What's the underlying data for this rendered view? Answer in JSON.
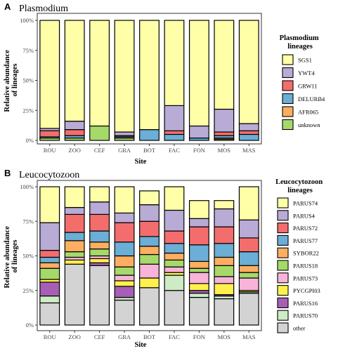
{
  "chart_data": [
    {
      "panel": "A",
      "type": "bar",
      "stacked": true,
      "title": "Plasmodium",
      "xlabel": "Site",
      "ylabel": "Relative abundance of lineages",
      "ylim": [
        0,
        100
      ],
      "ytick_labels": [
        "0%",
        "25%",
        "50%",
        "75%",
        "100%"
      ],
      "categories": [
        "ROU",
        "ZOO",
        "CEF",
        "GRA",
        "BOT",
        "FAC",
        "FON",
        "MOS",
        "MAS"
      ],
      "legend": {
        "title": "Plasmodium lineages",
        "position": "right"
      },
      "series": [
        {
          "name": "unknown",
          "color": "#a6d96a",
          "values": [
            2,
            2,
            12,
            2,
            0,
            0,
            0,
            1,
            0
          ]
        },
        {
          "name": "AFR065",
          "color": "#fdae61",
          "values": [
            0,
            0,
            0,
            0,
            0,
            0,
            0,
            1,
            0
          ]
        },
        {
          "name": "DELURB4",
          "color": "#6baed6",
          "values": [
            1,
            2,
            0,
            1,
            9,
            5,
            2,
            2,
            5
          ]
        },
        {
          "name": "GRW11",
          "color": "#f46d6d",
          "values": [
            5,
            5,
            0,
            1,
            0,
            3,
            0,
            3,
            3
          ]
        },
        {
          "name": "YWT4",
          "color": "#b8abd6",
          "values": [
            2,
            7,
            0,
            3,
            0,
            21,
            10,
            19,
            6
          ]
        },
        {
          "name": "SGS1",
          "color": "#ffffa8",
          "values": [
            90,
            84,
            88,
            93,
            91,
            71,
            88,
            74,
            86
          ]
        }
      ]
    },
    {
      "panel": "B",
      "type": "bar",
      "stacked": true,
      "title": "Leucocytozoon",
      "xlabel": "Site",
      "ylabel": "Relative abundance of lineages",
      "ylim": [
        0,
        100
      ],
      "ytick_labels": [
        "0%",
        "25%",
        "50%",
        "75%",
        "100%"
      ],
      "categories": [
        "ROU",
        "ZOO",
        "CEF",
        "GRA",
        "BOT",
        "FAC",
        "FON",
        "MOS",
        "MAS"
      ],
      "legend": {
        "title": "Leucocytozoon lineages",
        "position": "right"
      },
      "series": [
        {
          "name": "other",
          "color": "#d3d3d3",
          "values": [
            16,
            44,
            43,
            18,
            27,
            25,
            20,
            19,
            23
          ]
        },
        {
          "name": "PARUS70",
          "color": "#cdebc4",
          "values": [
            5,
            0,
            0,
            2,
            0,
            11,
            3,
            2,
            1
          ]
        },
        {
          "name": "PARUS16",
          "color": "#a65fb4",
          "values": [
            10,
            0,
            2,
            8,
            0,
            0,
            2,
            1,
            0
          ]
        },
        {
          "name": "PYCGPI03",
          "color": "#fff04d",
          "values": [
            2,
            3,
            3,
            4,
            7,
            2,
            5,
            8,
            1
          ]
        },
        {
          "name": "PARUS73",
          "color": "#f8b4d8",
          "values": [
            0,
            2,
            2,
            4,
            10,
            4,
            8,
            5,
            9
          ]
        },
        {
          "name": "PARUS18",
          "color": "#a6d96a",
          "values": [
            8,
            4,
            5,
            6,
            7,
            5,
            3,
            8,
            4
          ]
        },
        {
          "name": "SYBOR22",
          "color": "#fdae61",
          "values": [
            4,
            8,
            5,
            8,
            6,
            5,
            5,
            6,
            5
          ]
        },
        {
          "name": "PARUS77",
          "color": "#6baed6",
          "values": [
            4,
            6,
            8,
            10,
            7,
            7,
            12,
            10,
            10
          ]
        },
        {
          "name": "PARUS72",
          "color": "#f46d6d",
          "values": [
            5,
            13,
            12,
            14,
            11,
            9,
            13,
            12,
            10
          ]
        },
        {
          "name": "PARUS4",
          "color": "#b8abd6",
          "values": [
            20,
            5,
            9,
            7,
            12,
            15,
            6,
            13,
            13
          ]
        },
        {
          "name": "PARUS74",
          "color": "#ffffa8",
          "values": [
            26,
            15,
            11,
            19,
            10,
            17,
            13,
            6,
            24
          ]
        }
      ]
    }
  ]
}
